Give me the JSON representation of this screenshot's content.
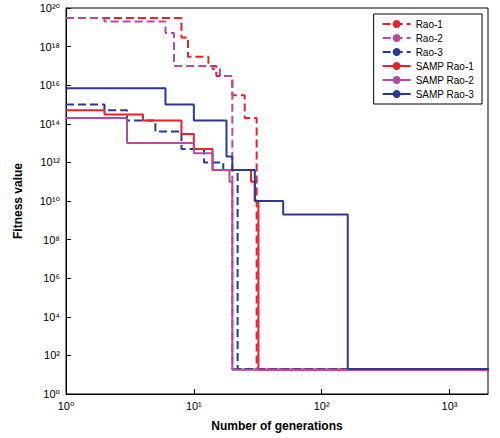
{
  "chart_data": {
    "type": "line",
    "x_label": "Number of generations",
    "y_label": "Fitness value",
    "log": true,
    "grid": false,
    "legend": "top-right",
    "xlim": [
      1,
      2000
    ],
    "ylim": [
      1,
      1e+20
    ],
    "xticks": [
      {
        "value": 1,
        "label": "10⁰"
      },
      {
        "value": 10,
        "label": "10¹"
      },
      {
        "value": 100,
        "label": "10²"
      },
      {
        "value": 1000,
        "label": "10³"
      }
    ],
    "yticks": [
      {
        "value": 1,
        "label": "10⁰"
      },
      {
        "value": 100.0,
        "label": "10²"
      },
      {
        "value": 10000.0,
        "label": "10⁴"
      },
      {
        "value": 1000000.0,
        "label": "10⁶"
      },
      {
        "value": 100000000.0,
        "label": "10⁸"
      },
      {
        "value": 10000000000.0,
        "label": "10¹⁰"
      },
      {
        "value": 1000000000000.0,
        "label": "10¹²"
      },
      {
        "value": 100000000000000.0,
        "label": "10¹⁴"
      },
      {
        "value": 1e+16,
        "label": "10¹⁶"
      },
      {
        "value": 1e+18,
        "label": "10¹⁸"
      },
      {
        "value": 1e+20,
        "label": "10²⁰"
      }
    ],
    "series": [
      {
        "name": "Rao-1",
        "color": "#e8212a",
        "line_style": "dashed",
        "x": [
          1,
          8,
          9,
          13,
          15,
          20,
          25,
          31,
          2000
        ],
        "values": [
          3e+19,
          3e+18,
          3e+17,
          1e+17,
          3e+16,
          3000000000000000.0,
          200000000000000.0,
          20,
          17
        ]
      },
      {
        "name": "Rao-2",
        "color": "#b04da0",
        "line_style": "dashed",
        "x": [
          1,
          2,
          6,
          7,
          14,
          16,
          20,
          2000
        ],
        "values": [
          3e+19,
          2e+19,
          5e+18,
          1e+17,
          7e+16,
          3e+16,
          20,
          17
        ]
      },
      {
        "name": "Rao-3",
        "color": "#2b3990",
        "line_style": "dashed",
        "x": [
          1,
          2,
          3,
          5,
          8,
          12,
          17,
          22,
          2000
        ],
        "values": [
          1000000000000000.0,
          500000000000000.0,
          150000000000000.0,
          40000000000000.0,
          5000000000000.0,
          1000000000000.0,
          400000000000.0,
          20,
          17
        ]
      },
      {
        "name": "SAMP Rao-1",
        "color": "#e8212a",
        "line_style": "solid",
        "x": [
          1,
          2,
          4,
          8,
          10,
          14,
          28,
          30,
          32,
          2000
        ],
        "values": [
          500000000000000.0,
          300000000000000.0,
          150000000000000.0,
          30000000000000.0,
          5000000000000.0,
          400000000000.0,
          100000000000.0,
          10000000000.0,
          18,
          17
        ]
      },
      {
        "name": "SAMP Rao-2",
        "color": "#b04da0",
        "line_style": "solid",
        "x": [
          1,
          3,
          10,
          14,
          19,
          20,
          2000
        ],
        "values": [
          200000000000000.0,
          10000000000000.0,
          3000000000000.0,
          400000000000.0,
          100000000000.0,
          18,
          17
        ]
      },
      {
        "name": "SAMP Rao-3",
        "color": "#2b3990",
        "line_style": "solid",
        "x": [
          1,
          6,
          10,
          18,
          20,
          30,
          50,
          160,
          2000
        ],
        "values": [
          7000000000000000.0,
          1000000000000000.0,
          150000000000000.0,
          2000000000000.0,
          400000000000.0,
          10000000000.0,
          2000000000.0,
          20,
          17
        ]
      }
    ]
  }
}
